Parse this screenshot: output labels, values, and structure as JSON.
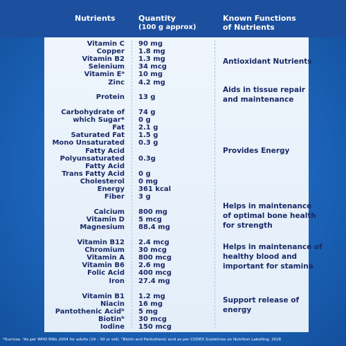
{
  "header": {
    "nutrients": "Nutrients",
    "quantity": [
      "Quantity",
      "(100 g approx)"
    ],
    "functions": [
      "Known Functions",
      "of Nutrients"
    ]
  },
  "groups": [
    {
      "rows": [
        {
          "nutrient": "Vitamin C",
          "quantity": "90 mg"
        },
        {
          "nutrient": "Copper",
          "quantity": "1.8 mg"
        },
        {
          "nutrient": "Vitamin B2",
          "quantity": "1.3 mg"
        },
        {
          "nutrient": "Selenium",
          "quantity": "34 mcg"
        },
        {
          "nutrient": "Vitamin Eᵃ",
          "quantity": "10 mg"
        },
        {
          "nutrient": "Zinc",
          "quantity": "4.2 mg"
        }
      ],
      "function": [
        "Antioxidant Nutrients"
      ]
    },
    {
      "rows": [
        {
          "nutrient": "Protein",
          "quantity": "13 g"
        }
      ],
      "function": [
        "Aids in tissue repair",
        "and maintenance"
      ]
    },
    {
      "rows": [
        {
          "nutrient": "Carbohydrate of",
          "quantity": "74 g"
        },
        {
          "nutrient": "which Sugar*",
          "quantity": "0 g"
        },
        {
          "nutrient": "Fat",
          "quantity": "2.1 g"
        },
        {
          "nutrient": "Saturated Fat",
          "quantity": "1.5 g"
        },
        {
          "nutrient": "Mono Unsaturated",
          "quantity": "0.3 g"
        },
        {
          "nutrient": "Fatty Acid"
        },
        {
          "nutrient": "Polyunsaturated",
          "quantity": "0.3g"
        },
        {
          "nutrient": "Fatty Acid"
        },
        {
          "nutrient": "Trans Fatty Acid",
          "quantity": "0 g"
        },
        {
          "nutrient": "Cholesterol",
          "quantity": "0 mg"
        },
        {
          "nutrient": "Energy",
          "quantity": "361 kcal"
        },
        {
          "nutrient": "Fiber",
          "quantity": "3 g"
        }
      ],
      "function": [
        "Provides Energy"
      ]
    },
    {
      "rows": [
        {
          "nutrient": "Calcium",
          "quantity": "800 mg"
        },
        {
          "nutrient": "Vitamin D",
          "quantity": "5 mcg"
        },
        {
          "nutrient": "Magnesium",
          "quantity": "88.4 mg"
        }
      ],
      "function": [
        "Helps in maintenance",
        "of optimal bone health",
        "for strength"
      ]
    },
    {
      "rows": [
        {
          "nutrient": "Vitamin B12",
          "quantity": "2.4 mcg"
        },
        {
          "nutrient": "Chromium",
          "quantity": "30 mcg"
        },
        {
          "nutrient": "Vitamin A",
          "quantity": "800 mcg"
        },
        {
          "nutrient": "Vitamin B6",
          "quantity": "2.6 mg"
        },
        {
          "nutrient": "Folic Acid",
          "quantity": "400 mcg"
        },
        {
          "nutrient": "Iron",
          "quantity": "27.4 mg"
        }
      ],
      "function": [
        "Helps in maintenance of",
        "healthy blood and",
        "important for stamina"
      ]
    },
    {
      "rows": [
        {
          "nutrient": "Vitamin B1",
          "quantity": "1.2 mg"
        },
        {
          "nutrient": "Niacin",
          "quantity": "16 mg"
        },
        {
          "nutrient": "Pantothenic Acidᵇ",
          "quantity": "5 mg"
        },
        {
          "nutrient": "Biotinᵇ",
          "quantity": "30 mcg"
        },
        {
          "nutrient": "Iodine",
          "quantity": "150 mcg"
        }
      ],
      "function": [
        "Support release of",
        "energy"
      ]
    }
  ],
  "footnote": "*Sucrose. ᵃAs per WHO RNIs 2004 for adults (19 – 50 yr old). ᵇBiotin and Pantothenic acid as per CODEX Guidelines on Nutrition Labelling, 2016"
}
